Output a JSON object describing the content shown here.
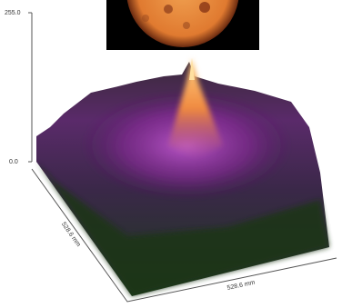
{
  "z_axis": {
    "ticks": [
      "255.0",
      "0.0"
    ]
  },
  "y_axis": {
    "label": "528.6 mm"
  },
  "x_axis": {
    "label": "528.6 mm"
  }
}
